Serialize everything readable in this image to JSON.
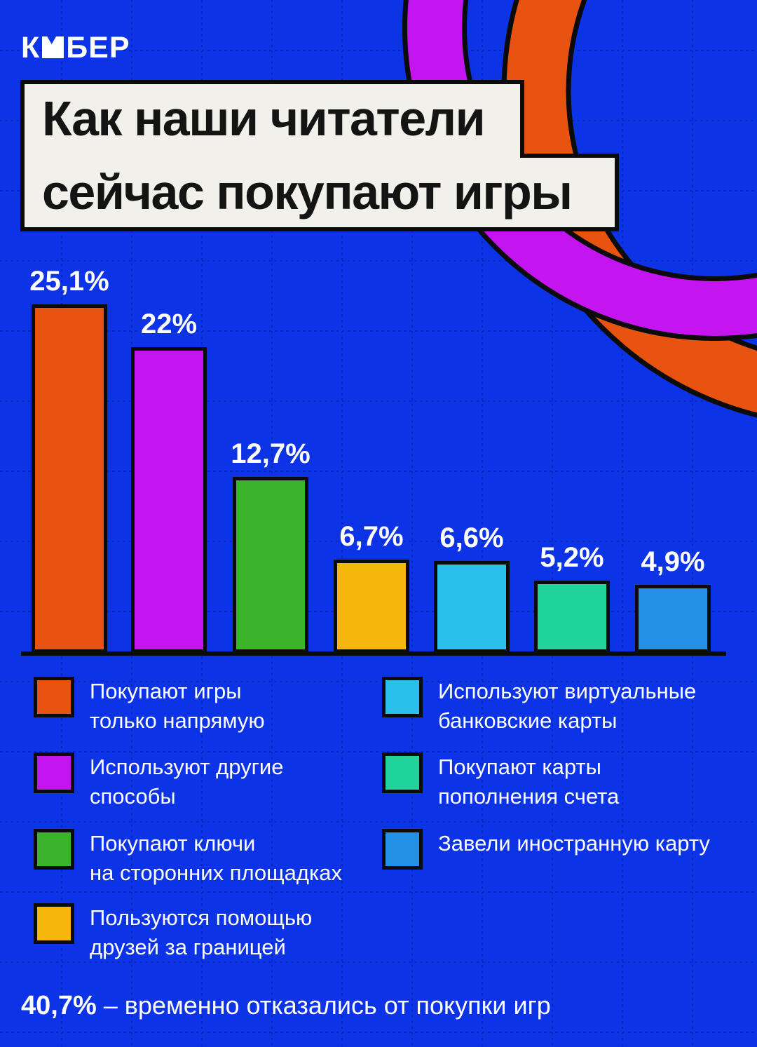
{
  "brand": {
    "name": "КИБЕР",
    "logo_prefix": "К",
    "logo_suffix": "БЕР"
  },
  "title": {
    "line1": "Как наши читатели",
    "line2": "сейчас покупают игры"
  },
  "chart_data": {
    "type": "bar",
    "title": "Как наши читатели сейчас покупают игры",
    "unit": "%",
    "categories": [
      "Покупают игры только напрямую",
      "Используют другие способы",
      "Покупают ключи на сторонних площадках",
      "Пользуются помощью друзей за границей",
      "Используют виртуальные банковские карты",
      "Покупают карты пополнения счета",
      "Завели иностранную карту"
    ],
    "values": [
      25.1,
      22,
      12.7,
      6.7,
      6.6,
      5.2,
      4.9
    ],
    "value_labels": [
      "25,1%",
      "22%",
      "12,7%",
      "6,7%",
      "6,6%",
      "5,2%",
      "4,9%"
    ],
    "bar_colors": [
      "#E85311",
      "#C414F0",
      "#3AB42A",
      "#F6B70D",
      "#2BC0EC",
      "#1FD39B",
      "#2590E8"
    ],
    "ylim": [
      0,
      26
    ],
    "grid": true,
    "legend_position": "bottom",
    "annotation": "40,7% – временно отказались от покупки игр"
  },
  "legend": {
    "items": [
      {
        "lines": [
          "Покупают игры",
          "только напрямую"
        ],
        "color": "#E85311",
        "column": "left"
      },
      {
        "lines": [
          "Используют другие",
          "способы"
        ],
        "color": "#C414F0",
        "column": "left"
      },
      {
        "lines": [
          "Покупают ключи",
          "на сторонних площадках"
        ],
        "color": "#3AB42A",
        "column": "left"
      },
      {
        "lines": [
          "Пользуются помощью",
          "друзей за границей"
        ],
        "color": "#F6B70D",
        "column": "left"
      },
      {
        "lines": [
          "Используют виртуальные",
          "банковские карты"
        ],
        "color": "#2BC0EC",
        "column": "right"
      },
      {
        "lines": [
          "Покупают карты",
          "пополнения счета"
        ],
        "color": "#1FD39B",
        "column": "right"
      },
      {
        "lines": [
          "Завели иностранную карту"
        ],
        "color": "#2590E8",
        "column": "right"
      }
    ]
  },
  "footer": {
    "value": "40,7%",
    "text": "– временно отказались от покупки игр"
  },
  "colors": {
    "background": "#0C33E6",
    "panel": "#F2F0EB",
    "outline": "#0B0B0B",
    "text_light": "#FFFFFF",
    "text_dark": "#141414",
    "grid_line": "#031070",
    "ring_orange": "#E85311",
    "ring_magenta": "#C414F0"
  }
}
